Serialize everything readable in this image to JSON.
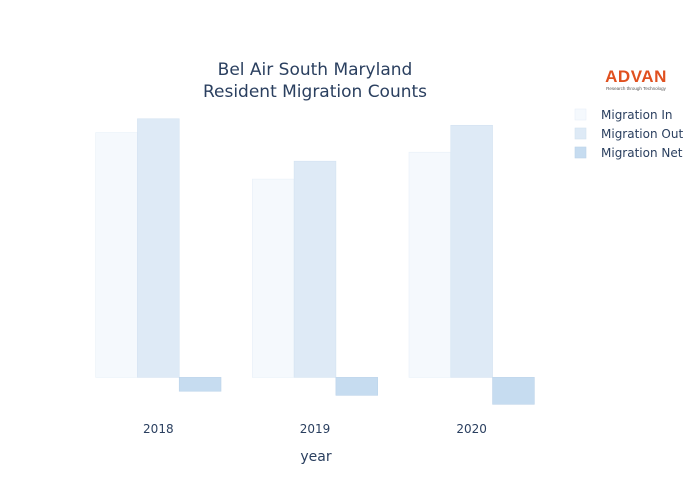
{
  "logo": {
    "name": "ADVAN",
    "tagline": "Research through Technology",
    "color": "#e0501f"
  },
  "chart_data": {
    "type": "bar",
    "title_lines": [
      "Bel Air South Maryland",
      "Resident Migration Counts"
    ],
    "xlabel": "year",
    "ylabel": "",
    "categories": [
      "2018",
      "2019",
      "2020"
    ],
    "series": [
      {
        "name": "Migration In",
        "values": [
          3000,
          2430,
          2760
        ],
        "color": "#f5f9fd",
        "stroke": "#e8f0f8"
      },
      {
        "name": "Migration Out",
        "values": [
          3170,
          2650,
          3090
        ],
        "color": "#deeaf6",
        "stroke": "#d3e2f1"
      },
      {
        "name": "Migration Net",
        "values": [
          -170,
          -220,
          -330
        ],
        "color": "#c6dcf0",
        "stroke": "#bcd3ea"
      }
    ],
    "ylim": [
      -400,
      3400
    ],
    "grid": false,
    "legend": "top-right"
  }
}
